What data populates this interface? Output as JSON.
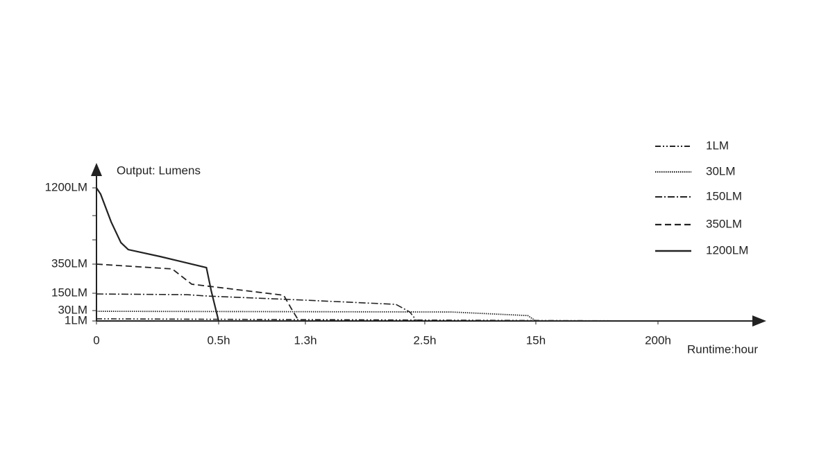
{
  "chart_data": {
    "type": "line",
    "ylabel": "Output: Lumens",
    "xlabel": "Runtime:hour",
    "xticks": [
      0,
      {
        "value": 0.5,
        "label": "0.5h"
      },
      {
        "value": 1.3,
        "label": "1.3h"
      },
      {
        "value": 2.5,
        "label": "2.5h"
      },
      {
        "value": 15,
        "label": "15h"
      },
      {
        "value": 200,
        "label": "200h"
      }
    ],
    "yticks": [
      {
        "value": 1,
        "label": "1LM"
      },
      {
        "value": 30,
        "label": "30LM"
      },
      {
        "value": 150,
        "label": "150LM"
      },
      {
        "value": 350,
        "label": "350LM"
      },
      {
        "value": 1200,
        "label": "1200LM"
      }
    ],
    "color": "#222",
    "series": [
      {
        "name": "1LM",
        "linestyle": "dash-dot-dot",
        "x": [
          0,
          195
        ],
        "values": [
          7,
          1
        ]
      },
      {
        "name": "30LM",
        "linestyle": "dotted",
        "x": [
          0,
          5.5,
          14.1,
          15
        ],
        "values": [
          28,
          26,
          16,
          1
        ]
      },
      {
        "name": "150LM",
        "linestyle": "dash-dot",
        "x": [
          0,
          0.37,
          0.46,
          1.3,
          2.21,
          2.35,
          2.42
        ],
        "values": [
          145,
          140,
          130,
          102,
          73,
          26,
          1
        ]
      },
      {
        "name": "350LM",
        "linestyle": "dashed",
        "x": [
          0,
          0.31,
          0.39,
          0.46,
          1.1,
          1.17,
          1.24
        ],
        "values": [
          350,
          317,
          212,
          198,
          136,
          44,
          1
        ]
      },
      {
        "name": "1200LM",
        "linestyle": "solid",
        "x": [
          0,
          0.017,
          0.06,
          0.1,
          0.13,
          0.26,
          0.45,
          0.47,
          0.5
        ],
        "values": [
          1200,
          1130,
          821,
          590,
          512,
          435,
          326,
          164,
          1
        ]
      }
    ]
  }
}
